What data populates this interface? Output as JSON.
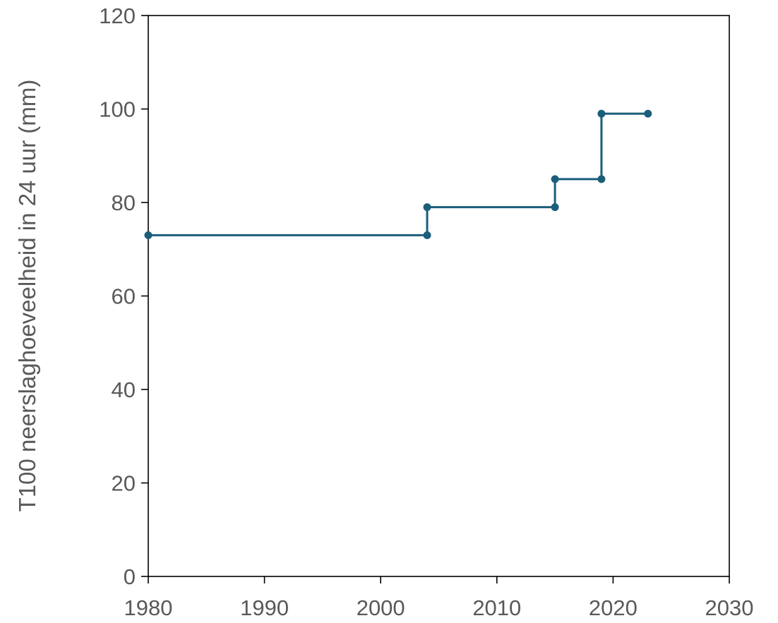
{
  "chart_data": {
    "type": "line",
    "step": true,
    "xlabel": "",
    "ylabel": "T100 neerslaghoeveelheid in 24 uur (mm)",
    "xlim": [
      1980,
      2030
    ],
    "ylim": [
      0,
      120
    ],
    "xticks": [
      "1980",
      "1990",
      "2000",
      "2010",
      "2020",
      "2030"
    ],
    "yticks": [
      "0",
      "20",
      "40",
      "60",
      "80",
      "100",
      "120"
    ],
    "grid": false,
    "legend": "none",
    "series": [
      {
        "color": "#1a5e7a",
        "points": [
          {
            "x": 1980,
            "y": 73
          },
          {
            "x": 2004,
            "y": 73
          },
          {
            "x": 2004,
            "y": 79
          },
          {
            "x": 2015,
            "y": 79
          },
          {
            "x": 2015,
            "y": 85
          },
          {
            "x": 2019,
            "y": 85
          },
          {
            "x": 2019,
            "y": 99
          },
          {
            "x": 2023,
            "y": 99
          }
        ]
      }
    ]
  }
}
